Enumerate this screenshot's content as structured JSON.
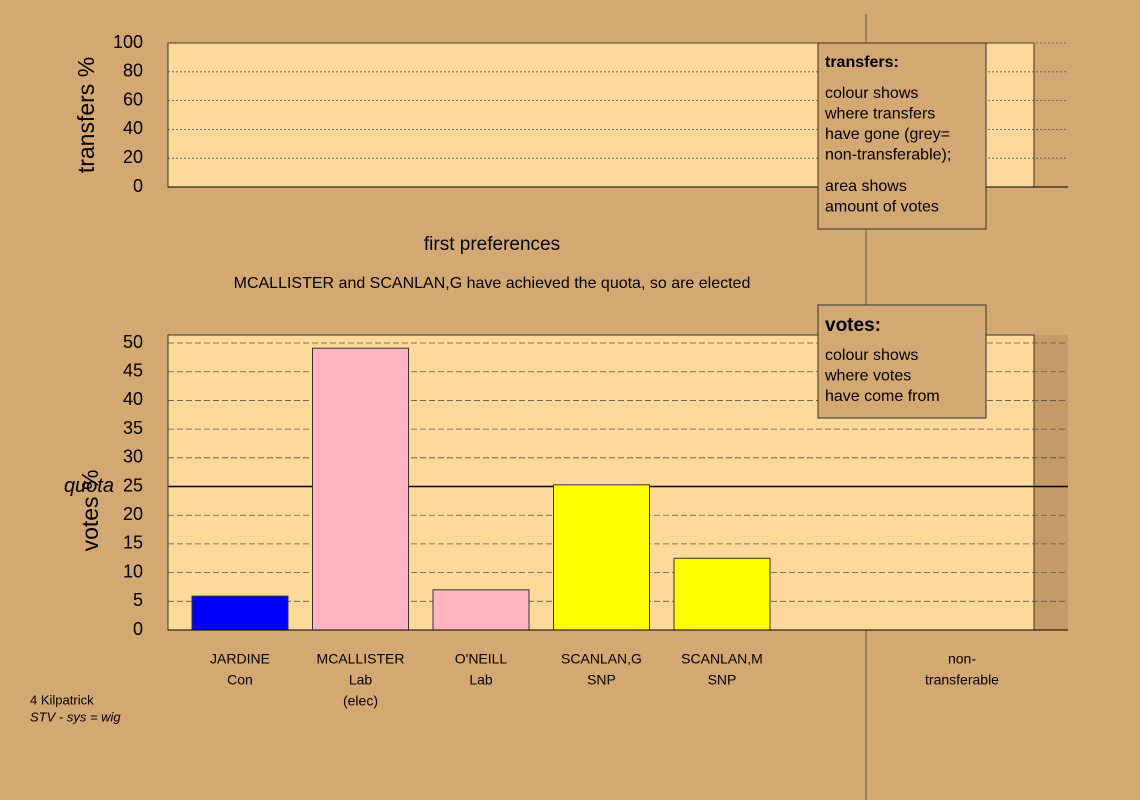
{
  "chart_data": [
    {
      "type": "bar",
      "ylabel": "transfers %",
      "xlabel": "first preferences",
      "categories": [],
      "values": [],
      "ylim": [
        0,
        100
      ],
      "yticks": [
        0,
        20,
        40,
        60,
        80,
        100
      ],
      "grid": true
    },
    {
      "type": "bar",
      "ylabel": "votes %",
      "categories": [
        [
          "JARDINE",
          "Con"
        ],
        [
          "MCALLISTER",
          "Lab",
          "(elec)"
        ],
        [
          "O'NEILL",
          "Lab"
        ],
        [
          "SCANLAN,G",
          "SNP"
        ],
        [
          "SCANLAN,M",
          "SNP"
        ],
        [
          "non-",
          "transferable"
        ]
      ],
      "values": [
        5.9,
        49.1,
        7.0,
        25.3,
        12.5,
        0
      ],
      "colors": [
        "#0000ff",
        "#ffb6c1",
        "#ffb6c1",
        "#ffff00",
        "#ffff00",
        "#a0a0a0"
      ],
      "ylim": [
        0,
        51.4
      ],
      "yticks": [
        0,
        5,
        10,
        15,
        20,
        25,
        30,
        35,
        40,
        45,
        50
      ],
      "grid": true,
      "quota": 25,
      "quota_label": "quota"
    }
  ],
  "message": "MCALLISTER and SCANLAN,G have achieved the quota, so are elected",
  "legends": [
    {
      "title": "transfers:",
      "paragraphs": [
        [
          "colour shows",
          "where transfers",
          "have gone (grey=",
          "non-transferable);"
        ],
        [
          "area shows",
          "amount of votes"
        ]
      ]
    },
    {
      "title": "votes:",
      "paragraphs": [
        [
          "colour shows",
          "where votes",
          "have come from"
        ]
      ]
    }
  ],
  "footer": [
    "4 Kilpatrick",
    "STV - sys = wig"
  ]
}
